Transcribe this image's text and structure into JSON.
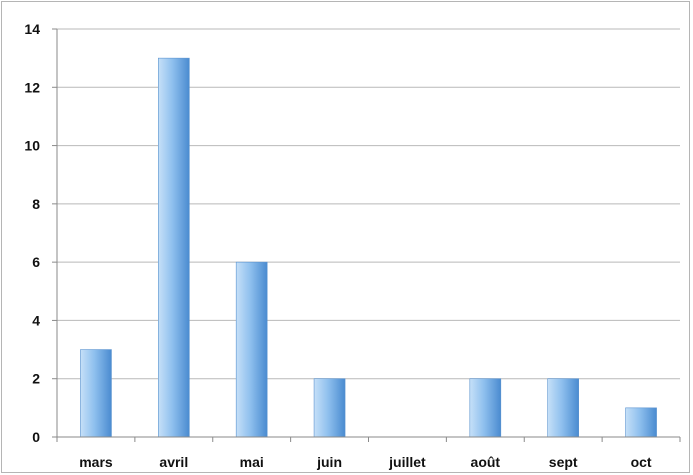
{
  "chart_data": {
    "type": "bar",
    "categories": [
      "mars",
      "avril",
      "mai",
      "juin",
      "juillet",
      "août",
      "sept",
      "oct"
    ],
    "values": [
      3,
      13,
      6,
      2,
      0,
      2,
      2,
      1
    ],
    "ylim": [
      0,
      14
    ],
    "yticks": [
      "0",
      "2",
      "4",
      "6",
      "8",
      "10",
      "12",
      "14"
    ],
    "grid": true,
    "legend": "none",
    "colors": {
      "bar_light": "#c6e0f8",
      "bar_mid": "#8fc0ee",
      "bar_dark": "#4a8bd0",
      "grid": "#b9b9b9",
      "axis": "#8a8a8a"
    }
  }
}
